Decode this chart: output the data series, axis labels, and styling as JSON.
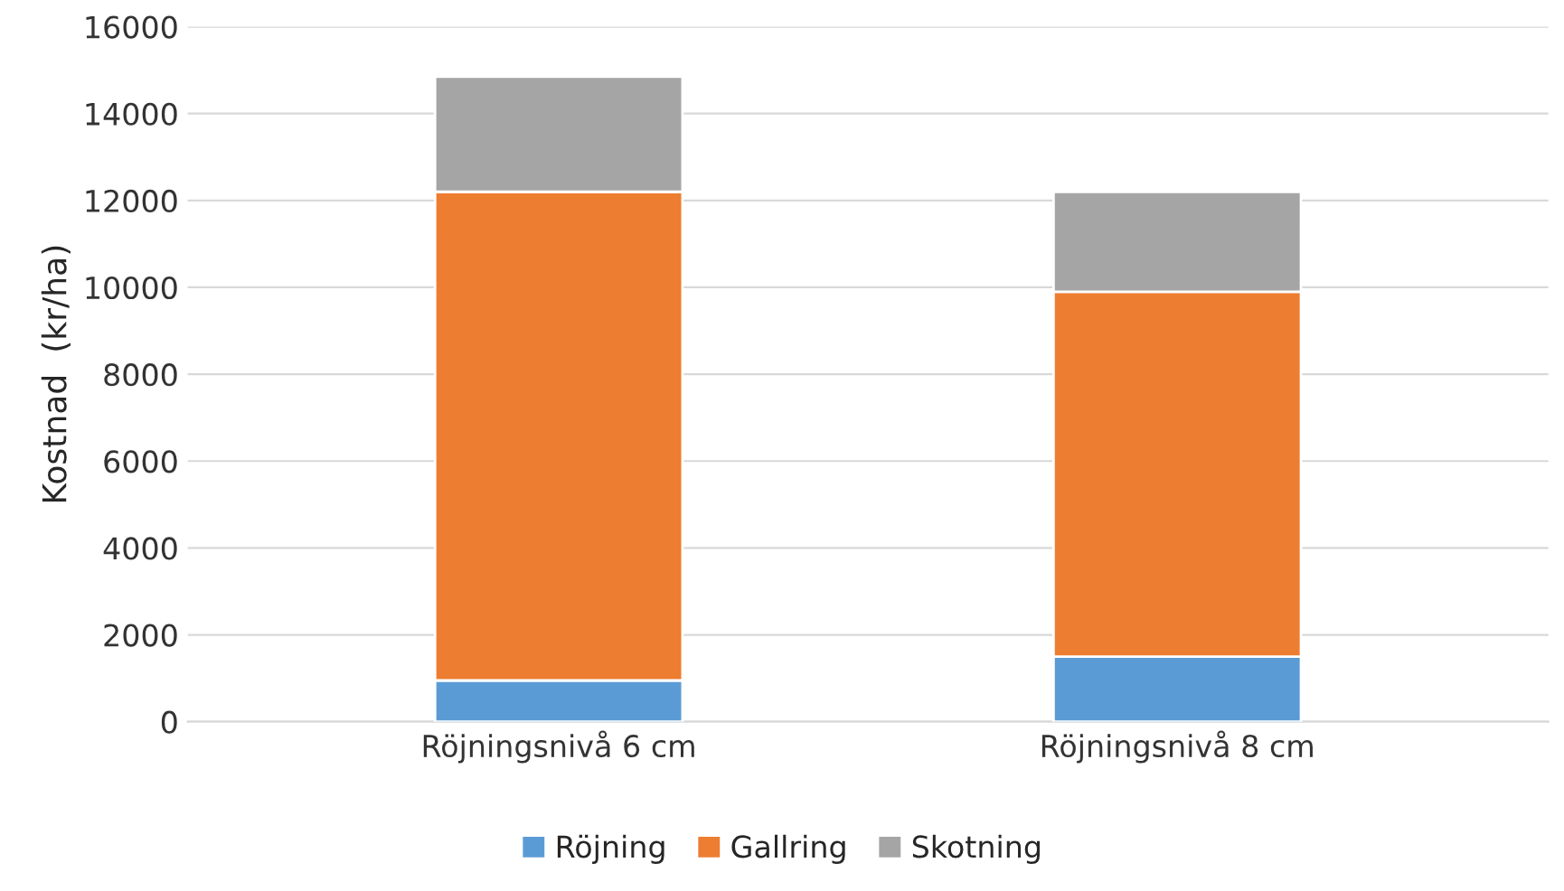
{
  "chart_data": {
    "type": "bar",
    "stacked": true,
    "ylabel": "Kostnad  (kr/ha)",
    "categories": [
      "Röjningsnivå 6 cm",
      "Röjningsnivå 8 cm"
    ],
    "series": [
      {
        "name": "Röjning",
        "color": "#5b9bd5",
        "values": [
          950,
          1500
        ]
      },
      {
        "name": "Gallring",
        "color": "#ed7d31",
        "values": [
          11250,
          8400
        ]
      },
      {
        "name": "Skotning",
        "color": "#a5a5a5",
        "values": [
          2650,
          2300
        ]
      }
    ],
    "ylim": [
      0,
      16000
    ],
    "yticks": [
      0,
      2000,
      4000,
      6000,
      8000,
      10000,
      12000,
      14000,
      16000
    ],
    "grid": "y",
    "legend": "bottom"
  }
}
